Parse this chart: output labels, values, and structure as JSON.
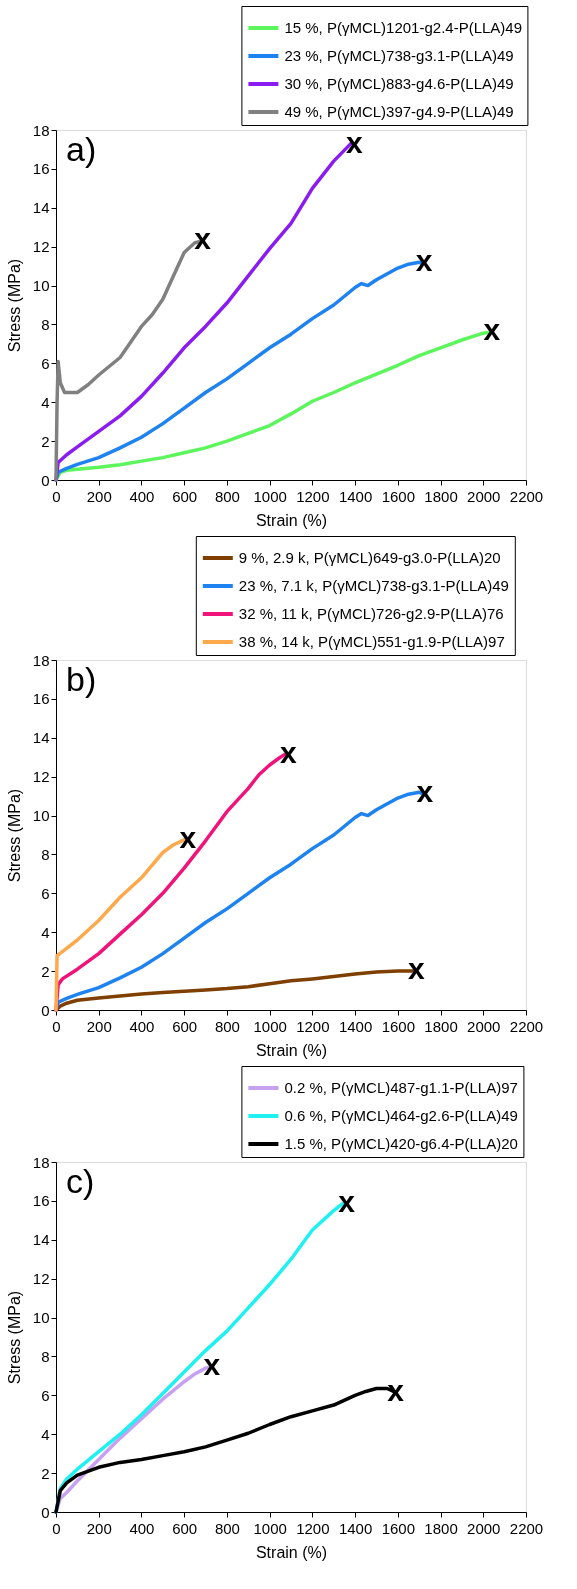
{
  "chart_data": [
    {
      "type": "line",
      "xlabel": "Strain (%)",
      "ylabel": "Stress (MPa)",
      "xlim": [
        0,
        2200
      ],
      "ylim": [
        0,
        18
      ],
      "xticks": [
        0,
        200,
        400,
        600,
        800,
        1000,
        1200,
        1400,
        1600,
        1800,
        2000,
        2200
      ],
      "yticks": [
        0,
        2,
        4,
        6,
        8,
        10,
        12,
        14,
        16,
        18
      ],
      "grid": false,
      "legend": "top right",
      "line_style": "solid",
      "marker": "none",
      "series": [
        {
          "name": "15 %, P(γMCL)1201-g2.4-P(LLA)49",
          "color": "#5cf55c",
          "x": [
            0,
            20,
            50,
            100,
            200,
            300,
            400,
            500,
            600,
            700,
            800,
            900,
            1000,
            1100,
            1200,
            1300,
            1400,
            1500,
            1600,
            1700,
            1800,
            1900,
            2000,
            2030
          ],
          "values": [
            0,
            0.4,
            0.5,
            0.55,
            0.65,
            0.78,
            0.97,
            1.15,
            1.4,
            1.65,
            2.0,
            2.4,
            2.8,
            3.4,
            4.05,
            4.5,
            5.0,
            5.45,
            5.9,
            6.4,
            6.8,
            7.2,
            7.55,
            7.6
          ]
        },
        {
          "name": "23 %, P(γMCL)738-g3.1-P(LLA)49",
          "color": "#1e82f0",
          "x": [
            0,
            10,
            50,
            100,
            200,
            300,
            400,
            500,
            600,
            700,
            800,
            900,
            1000,
            1100,
            1200,
            1300,
            1400,
            1430,
            1460,
            1500,
            1600,
            1650,
            1700,
            1710
          ],
          "values": [
            0,
            0.4,
            0.6,
            0.8,
            1.15,
            1.65,
            2.2,
            2.9,
            3.7,
            4.5,
            5.2,
            6.0,
            6.8,
            7.5,
            8.3,
            9.0,
            9.9,
            10.1,
            10.0,
            10.3,
            10.9,
            11.1,
            11.2,
            11.15
          ]
        },
        {
          "name": "30 %, P(γMCL)883-g4.6-P(LLA)49",
          "color": "#8a1cf2",
          "x": [
            0,
            10,
            50,
            100,
            200,
            300,
            400,
            500,
            600,
            700,
            800,
            900,
            1000,
            1100,
            1200,
            1300,
            1380
          ],
          "values": [
            0,
            0.9,
            1.3,
            1.7,
            2.5,
            3.3,
            4.3,
            5.5,
            6.8,
            7.9,
            9.1,
            10.5,
            11.9,
            13.2,
            15.0,
            16.4,
            17.3
          ]
        },
        {
          "name": "49 %, P(γMCL)397-g4.9-P(LLA)49",
          "color": "#808080",
          "x": [
            0,
            5,
            10,
            20,
            40,
            100,
            150,
            200,
            300,
            400,
            450,
            500,
            550,
            600,
            650,
            670
          ],
          "values": [
            0,
            4.0,
            6.1,
            5.0,
            4.5,
            4.5,
            4.9,
            5.4,
            6.3,
            7.9,
            8.5,
            9.3,
            10.5,
            11.7,
            12.2,
            12.25
          ]
        }
      ],
      "annotations": [
        "a)",
        {
          "text": "x",
          "x": 686,
          "y": 12.27
        },
        {
          "text": "x",
          "x": 1396,
          "y": 17.25
        },
        {
          "text": "x",
          "x": 1723,
          "y": 11.14
        },
        {
          "text": "x",
          "x": 2040,
          "y": 7.62
        }
      ]
    },
    {
      "type": "line",
      "xlabel": "Strain (%)",
      "ylabel": "Stress (MPa)",
      "xlim": [
        0,
        2200
      ],
      "ylim": [
        0,
        18
      ],
      "xticks": [
        0,
        200,
        400,
        600,
        800,
        1000,
        1200,
        1400,
        1600,
        1800,
        2000,
        2200
      ],
      "yticks": [
        0,
        2,
        4,
        6,
        8,
        10,
        12,
        14,
        16,
        18
      ],
      "grid": false,
      "legend": "top right",
      "line_style": "solid",
      "marker": "none",
      "series": [
        {
          "name": "9 %, 2.9 k, P(γMCL)649-g3.0-P(LLA)20",
          "color": "#7f3f00",
          "x": [
            0,
            20,
            50,
            100,
            200,
            300,
            400,
            500,
            600,
            700,
            800,
            900,
            1000,
            1100,
            1200,
            1300,
            1400,
            1500,
            1600,
            1680
          ],
          "values": [
            0,
            0.2,
            0.35,
            0.5,
            0.62,
            0.72,
            0.82,
            0.9,
            0.97,
            1.03,
            1.1,
            1.2,
            1.35,
            1.5,
            1.6,
            1.72,
            1.85,
            1.95,
            2.0,
            2.0
          ]
        },
        {
          "name": "23 %, 7.1 k, P(γMCL)738-g3.1-P(LLA)49",
          "color": "#1e82f0",
          "x": [
            0,
            10,
            50,
            100,
            200,
            300,
            400,
            500,
            600,
            700,
            800,
            900,
            1000,
            1100,
            1200,
            1300,
            1400,
            1430,
            1460,
            1500,
            1600,
            1650,
            1700,
            1710
          ],
          "values": [
            0,
            0.4,
            0.6,
            0.8,
            1.15,
            1.65,
            2.2,
            2.9,
            3.7,
            4.5,
            5.2,
            6.0,
            6.8,
            7.5,
            8.3,
            9.0,
            9.9,
            10.1,
            10.0,
            10.3,
            10.9,
            11.1,
            11.2,
            11.15
          ]
        },
        {
          "name": "32 %, 11 k, P(γMCL)726-g2.9-P(LLA)76",
          "color": "#f0147a",
          "x": [
            0,
            10,
            30,
            100,
            200,
            300,
            400,
            500,
            600,
            700,
            800,
            900,
            950,
            1000,
            1050,
            1080
          ],
          "values": [
            0,
            1.3,
            1.6,
            2.1,
            2.9,
            3.9,
            4.9,
            6.0,
            7.3,
            8.7,
            10.2,
            11.4,
            12.1,
            12.6,
            13.0,
            13.2
          ]
        },
        {
          "name": "38 %, 14 k, P(γMCL)551-g1.9-P(LLA)97",
          "color": "#ffa94d",
          "x": [
            0,
            5,
            30,
            100,
            200,
            300,
            400,
            500,
            550,
            600
          ],
          "values": [
            0,
            2.8,
            3.0,
            3.6,
            4.6,
            5.8,
            6.8,
            8.1,
            8.5,
            8.75
          ]
        }
      ],
      "annotations": [
        "b)",
        {
          "text": "x",
          "x": 617,
          "y": 8.73
        },
        {
          "text": "x",
          "x": 1087,
          "y": 13.09
        },
        {
          "text": "x",
          "x": 1726,
          "y": 11.1
        },
        {
          "text": "x",
          "x": 1687,
          "y": 2.02
        }
      ]
    },
    {
      "type": "line",
      "xlabel": "Strain (%)",
      "ylabel": "Stress (MPa)",
      "xlim": [
        0,
        2200
      ],
      "ylim": [
        0,
        18
      ],
      "xticks": [
        0,
        200,
        400,
        600,
        800,
        1000,
        1200,
        1400,
        1600,
        1800,
        2000,
        2200
      ],
      "yticks": [
        0,
        2,
        4,
        6,
        8,
        10,
        12,
        14,
        16,
        18
      ],
      "grid": false,
      "legend": "top right",
      "line_style": "solid",
      "marker": "none",
      "series": [
        {
          "name": "0.2 %, P(γMCL)487-g1.1-P(LLA)97",
          "color": "#c8a0f0",
          "x": [
            0,
            20,
            50,
            100,
            200,
            300,
            400,
            500,
            600,
            650,
            700,
            720
          ],
          "values": [
            0,
            0.7,
            1.0,
            1.6,
            2.7,
            3.8,
            4.8,
            5.8,
            6.7,
            7.1,
            7.4,
            7.45
          ]
        },
        {
          "name": "0.6 %, P(γMCL)464-g2.6-P(LLA)49",
          "color": "#1ff0f0",
          "x": [
            0,
            20,
            50,
            100,
            200,
            300,
            400,
            500,
            600,
            700,
            800,
            900,
            1000,
            1100,
            1200,
            1300,
            1340
          ],
          "values": [
            0,
            1.2,
            1.7,
            2.2,
            3.1,
            4.0,
            5.0,
            6.1,
            7.2,
            8.3,
            9.3,
            10.5,
            11.7,
            13.0,
            14.5,
            15.5,
            15.85
          ]
        },
        {
          "name": "1.5 %, P(γMCL)420-g6.4-P(LLA)20",
          "color": "#000000",
          "x": [
            0,
            20,
            50,
            100,
            200,
            300,
            400,
            500,
            600,
            700,
            800,
            900,
            1000,
            1100,
            1200,
            1300,
            1400,
            1450,
            1500,
            1550,
            1580
          ],
          "values": [
            0,
            1.1,
            1.5,
            1.9,
            2.3,
            2.55,
            2.7,
            2.9,
            3.1,
            3.35,
            3.7,
            4.05,
            4.5,
            4.9,
            5.2,
            5.5,
            6.0,
            6.2,
            6.35,
            6.35,
            6.2
          ]
        }
      ],
      "annotations": [
        "c)",
        {
          "text": "x",
          "x": 1360,
          "y": 15.83
        },
        {
          "text": "x",
          "x": 730,
          "y": 7.45
        },
        {
          "text": "x",
          "x": 1590,
          "y": 6.1
        }
      ]
    }
  ]
}
